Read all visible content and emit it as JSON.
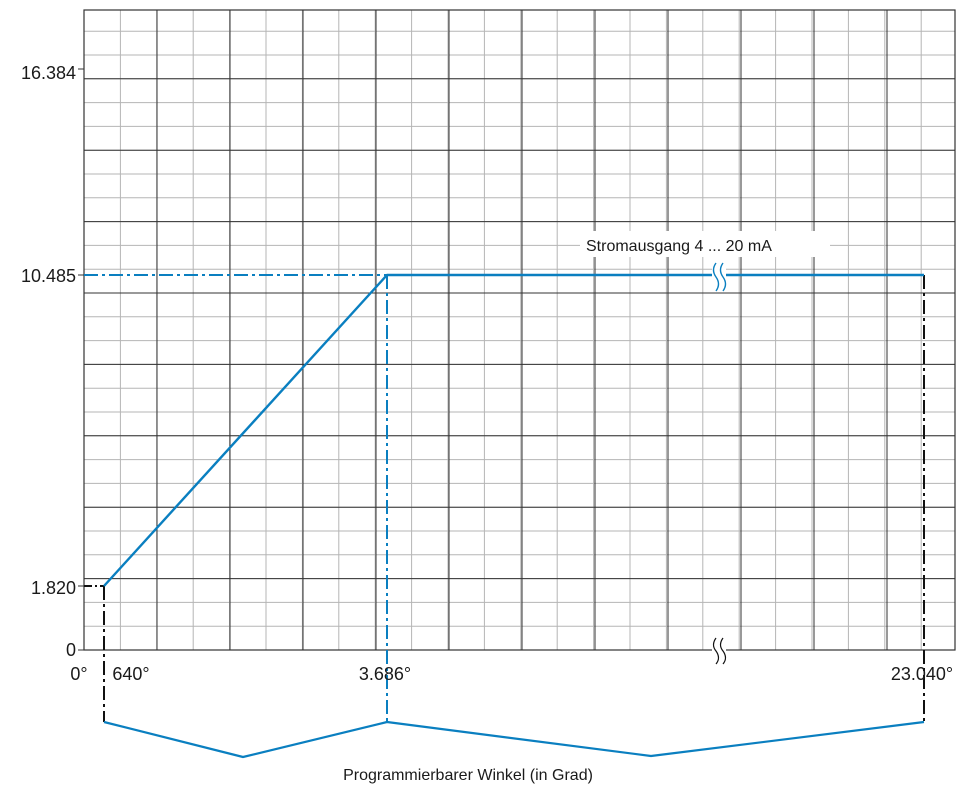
{
  "chart_data": {
    "type": "line",
    "title": "",
    "xlabel": "Programmierbarer Winkel (in Grad)",
    "ylabel": "",
    "grid": true,
    "y_ticks": [
      "16.384",
      "10.485",
      "1.820",
      "0"
    ],
    "x_ticks": [
      "0°",
      "640°",
      "3.686°",
      "23.040°"
    ],
    "series": [
      {
        "name": "Stromausgang 4 ... 20 mA",
        "points": [
          {
            "x": "640°",
            "y": "1.820"
          },
          {
            "x": "3.686°",
            "y": "10.485"
          },
          {
            "x": "23.040°",
            "y": "10.485"
          }
        ]
      }
    ],
    "annotations": [
      "Stromausgang 4 ... 20 mA"
    ],
    "colors": {
      "series": "#0a7fc0",
      "guide_black": "#111111",
      "grid_major": "#333333",
      "grid_minor": "#b5b5b5"
    }
  }
}
